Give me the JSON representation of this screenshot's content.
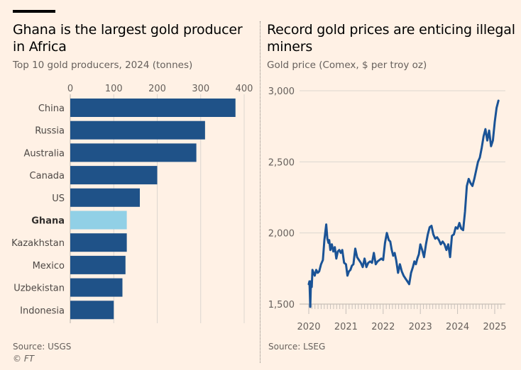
{
  "left_panel": {
    "title": "Ghana is the largest gold producer in Africa",
    "subtitle": "Top 10 gold producers, 2024 (tonnes)",
    "source": "Source: USGS",
    "credit": "© FT"
  },
  "right_panel": {
    "title": "Record gold prices are enticing illegal miners",
    "subtitle": "Gold price (Comex, $ per troy oz)",
    "source": "Source: LSEG"
  },
  "colors": {
    "bar": "#1F5288",
    "highlight": "#91D0E6",
    "line": "#1A5396",
    "grid": "#DCD6D0",
    "background": "#FFF1E5"
  },
  "chart_data": [
    {
      "type": "bar",
      "orientation": "horizontal",
      "title": "Ghana is the largest gold producer in Africa",
      "subtitle": "Top 10 gold producers, 2024 (tonnes)",
      "categories": [
        "China",
        "Russia",
        "Australia",
        "Canada",
        "US",
        "Ghana",
        "Kazakhstan",
        "Mexico",
        "Uzbekistan",
        "Indonesia"
      ],
      "values": [
        380,
        310,
        290,
        200,
        160,
        130,
        130,
        127,
        120,
        100
      ],
      "highlight": "Ghana",
      "xlim": [
        0,
        400
      ],
      "xticks": [
        0,
        100,
        200,
        300,
        400
      ],
      "xtick_labels": [
        "0",
        "100",
        "200",
        "300",
        "400"
      ],
      "grid": true,
      "source": "Source: USGS"
    },
    {
      "type": "line",
      "title": "Record gold prices are enticing illegal miners",
      "subtitle": "Gold price (Comex, $ per troy oz)",
      "ylim": [
        1500,
        3000
      ],
      "yticks": [
        1500,
        2000,
        2500,
        3000
      ],
      "ytick_labels": [
        "1,500",
        "2,000",
        "2,500",
        "3,000"
      ],
      "xlim": [
        2020,
        2025.2
      ],
      "xticks": [
        2020,
        2021,
        2022,
        2023,
        2024,
        2025
      ],
      "xtick_labels": [
        "2020",
        "2021",
        "2022",
        "2023",
        "2024",
        "2025"
      ],
      "grid": true,
      "series": [
        {
          "name": "Gold price",
          "x": [
            2020.0,
            2020.02,
            2020.04,
            2020.06,
            2020.08,
            2020.1,
            2020.13,
            2020.16,
            2020.2,
            2020.24,
            2020.28,
            2020.33,
            2020.38,
            2020.42,
            2020.47,
            2020.5,
            2020.53,
            2020.55,
            2020.58,
            2020.62,
            2020.66,
            2020.7,
            2020.74,
            2020.78,
            2020.82,
            2020.86,
            2020.9,
            2020.95,
            2021.0,
            2021.04,
            2021.08,
            2021.12,
            2021.16,
            2021.2,
            2021.25,
            2021.3,
            2021.35,
            2021.4,
            2021.45,
            2021.5,
            2021.55,
            2021.6,
            2021.65,
            2021.7,
            2021.75,
            2021.8,
            2021.85,
            2021.9,
            2021.95,
            2022.0,
            2022.05,
            2022.1,
            2022.15,
            2022.19,
            2022.23,
            2022.27,
            2022.31,
            2022.35,
            2022.4,
            2022.45,
            2022.5,
            2022.55,
            2022.6,
            2022.65,
            2022.7,
            2022.75,
            2022.8,
            2022.84,
            2022.88,
            2022.92,
            2022.96,
            2023.0,
            2023.05,
            2023.1,
            2023.15,
            2023.2,
            2023.25,
            2023.3,
            2023.35,
            2023.4,
            2023.45,
            2023.5,
            2023.55,
            2023.6,
            2023.65,
            2023.7,
            2023.75,
            2023.8,
            2023.85,
            2023.9,
            2023.95,
            2024.0,
            2024.05,
            2024.1,
            2024.15,
            2024.2,
            2024.25,
            2024.3,
            2024.35,
            2024.4,
            2024.45,
            2024.5,
            2024.55,
            2024.6,
            2024.65,
            2024.7,
            2024.75,
            2024.8,
            2024.85,
            2024.9,
            2024.95,
            2025.0,
            2025.05,
            2025.1
          ],
          "y": [
            1640,
            1660,
            1480,
            1660,
            1620,
            1740,
            1720,
            1700,
            1740,
            1720,
            1730,
            1780,
            1810,
            1950,
            2060,
            1960,
            1930,
            1950,
            1880,
            1920,
            1870,
            1900,
            1820,
            1870,
            1880,
            1860,
            1880,
            1790,
            1780,
            1700,
            1730,
            1740,
            1770,
            1780,
            1890,
            1830,
            1810,
            1790,
            1760,
            1820,
            1760,
            1790,
            1800,
            1790,
            1860,
            1780,
            1800,
            1810,
            1820,
            1810,
            1930,
            2000,
            1950,
            1940,
            1880,
            1840,
            1860,
            1810,
            1720,
            1780,
            1730,
            1700,
            1680,
            1660,
            1640,
            1720,
            1760,
            1800,
            1780,
            1820,
            1850,
            1920,
            1880,
            1830,
            1920,
            1990,
            2040,
            2050,
            1990,
            1960,
            1970,
            1950,
            1920,
            1940,
            1920,
            1880,
            1920,
            1830,
            1980,
            1990,
            2040,
            2030,
            2070,
            2030,
            2020,
            2150,
            2330,
            2380,
            2350,
            2330,
            2380,
            2440,
            2500,
            2530,
            2600,
            2680,
            2730,
            2650,
            2720,
            2610,
            2650,
            2780,
            2880,
            2930
          ]
        }
      ],
      "source": "Source: LSEG"
    }
  ]
}
